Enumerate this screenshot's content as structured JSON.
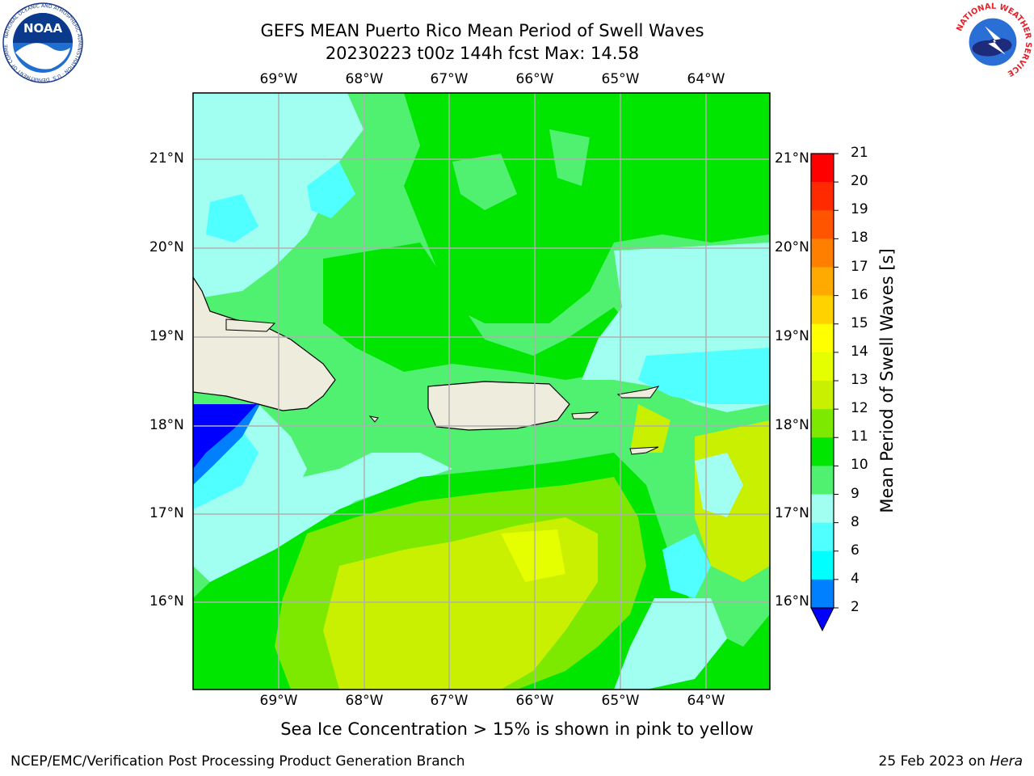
{
  "header": {
    "title_line1": "GEFS MEAN Puerto Rico Mean Period of Swell Waves",
    "title_line2": "20230223 t00z 144h fcst   Max: 14.58"
  },
  "logos": {
    "noaa_text": "NOAA",
    "noaa_ring_text": "NATIONAL OCEANIC AND ATMOSPHERIC ADMINISTRATION · U.S. DEPARTMENT OF COMMERCE",
    "nws_ring_text": "NATIONAL WEATHER SERVICE"
  },
  "map": {
    "lon_labels": [
      "69°W",
      "68°W",
      "67°W",
      "66°W",
      "65°W",
      "64°W"
    ],
    "lat_labels": [
      "21°N",
      "20°N",
      "19°N",
      "18°N",
      "17°N",
      "16°N"
    ],
    "colors": {
      "land": "#eeecdc",
      "grid": "#b0b0b0"
    }
  },
  "colorbar": {
    "label": "Mean Period of Swell Waves [s]",
    "ticks": [
      "21",
      "20",
      "19",
      "18",
      "17",
      "16",
      "15",
      "14",
      "13",
      "12",
      "11",
      "10",
      "9",
      "8",
      "6",
      "4",
      "2"
    ],
    "bands": [
      "#ff0000",
      "#ff2a00",
      "#ff5500",
      "#ff7f00",
      "#ffaa00",
      "#ffd200",
      "#ffff00",
      "#e6ff00",
      "#c8f000",
      "#7de800",
      "#00e600",
      "#50f070",
      "#a0fff0",
      "#50ffff",
      "#00ffff",
      "#0080ff"
    ],
    "under_color": "#0000ff"
  },
  "footer": {
    "subtitle": "Sea Ice Concentration > 15% is shown in pink to yellow",
    "credit": "NCEP/EMC/Verification Post Processing Product Generation Branch",
    "date": "25 Feb 2023 on ",
    "machine": "Hera"
  }
}
